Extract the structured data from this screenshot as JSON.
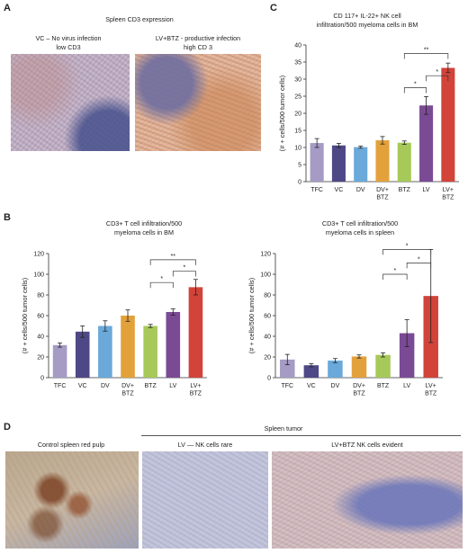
{
  "panels": {
    "A": {
      "letter": "A",
      "title": "Spleen CD3 expression",
      "image1_caption_line1": "VC – No virus infection",
      "image1_caption_line2": "low CD3",
      "image2_caption_line1": "LV+BTZ - productive infection",
      "image2_caption_line2": "high CD 3"
    },
    "B": {
      "letter": "B"
    },
    "C": {
      "letter": "C"
    },
    "D": {
      "letter": "D",
      "group_label": "Spleen tumor",
      "image1_caption": "Control spleen red pulp",
      "image2_caption": "LV — NK cells rare",
      "image3_caption": "LV+BTZ NK cells evident"
    }
  },
  "colors": {
    "TFC": "#a59bc4",
    "VC": "#4e4886",
    "DV": "#6aa9d9",
    "DV+BTZ": "#e3a13b",
    "BTZ": "#a7c95a",
    "LV": "#7b4a95",
    "LV+BTZ": "#d2433a",
    "ihc_brown": "#b9714a",
    "ihc_blue": "#8f9fc4"
  },
  "chart_data": [
    {
      "id": "C",
      "type": "bar",
      "title_line1": "CD 117+ IL-22+ NK cell",
      "title_line2": "infiltration/500 myeloma cells in BM",
      "ylabel": "(# + cells/500 tumor cells)",
      "ylim": [
        0,
        40
      ],
      "yticks": [
        0,
        5,
        10,
        15,
        20,
        25,
        30,
        35,
        40
      ],
      "categories": [
        [
          "TFC"
        ],
        [
          "VC"
        ],
        [
          "DV"
        ],
        [
          "DV+",
          "BTZ"
        ],
        [
          "BTZ"
        ],
        [
          "LV"
        ],
        [
          "LV+",
          "BTZ"
        ]
      ],
      "values": [
        11.3,
        10.6,
        10.1,
        12.1,
        11.4,
        22.3,
        33.3
      ],
      "errors": [
        1.3,
        0.6,
        0.3,
        1.1,
        0.5,
        2.6,
        1.4
      ],
      "significance": [
        {
          "from": 4,
          "to": 5,
          "label": "*"
        },
        {
          "from": 5,
          "to": 6,
          "label": "*"
        },
        {
          "from": 4,
          "to": 6,
          "label": "**"
        }
      ]
    },
    {
      "id": "B1",
      "type": "bar",
      "title_line1": "CD3+ T cell infiltration/500",
      "title_line2": "myeloma cells in BM",
      "ylabel": "(# + cells/500 tumor cells)",
      "ylim": [
        0,
        120
      ],
      "yticks": [
        0,
        20,
        40,
        60,
        80,
        100,
        120
      ],
      "categories": [
        [
          "TFC"
        ],
        [
          "VC"
        ],
        [
          "DV"
        ],
        [
          "DV+",
          "BTZ"
        ],
        [
          "BTZ"
        ],
        [
          "LV"
        ],
        [
          "LV+",
          "BTZ"
        ]
      ],
      "values": [
        31.5,
        44.5,
        50,
        60,
        50,
        63.5,
        87.5
      ],
      "errors": [
        2,
        5.5,
        5,
        5.5,
        1.5,
        3,
        7.5
      ],
      "significance": [
        {
          "from": 4,
          "to": 5,
          "label": "*"
        },
        {
          "from": 5,
          "to": 6,
          "label": "*"
        },
        {
          "from": 4,
          "to": 6,
          "label": "**"
        }
      ]
    },
    {
      "id": "B2",
      "type": "bar",
      "title_line1": "CD3+ T cell infiltration/500",
      "title_line2": "myeloma cells in spleen",
      "ylabel": "(# + cells/500 tumor cells)",
      "ylim": [
        0,
        120
      ],
      "yticks": [
        0,
        20,
        40,
        60,
        80,
        100,
        120
      ],
      "categories": [
        [
          "TFC"
        ],
        [
          "VC"
        ],
        [
          "DV"
        ],
        [
          "DV+",
          "BTZ"
        ],
        [
          "BTZ"
        ],
        [
          "LV"
        ],
        [
          "LV+",
          "BTZ"
        ]
      ],
      "values": [
        17.5,
        12,
        16.5,
        20.5,
        22,
        43,
        79
      ],
      "errors": [
        5,
        1.5,
        2,
        1.5,
        2,
        13,
        45
      ],
      "significance": [
        {
          "from": 4,
          "to": 5,
          "label": "*"
        },
        {
          "from": 5,
          "to": 6,
          "label": "*"
        },
        {
          "from": 4,
          "to": 6,
          "label": "*"
        }
      ]
    }
  ]
}
